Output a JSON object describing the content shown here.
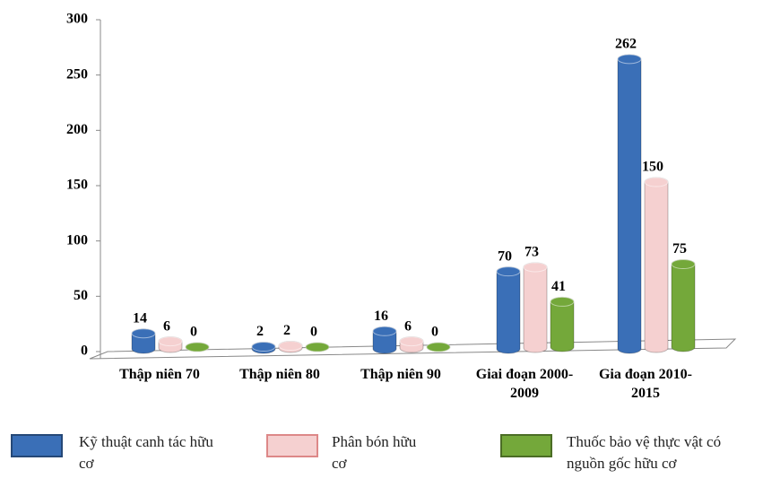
{
  "chart_data": {
    "type": "bar",
    "categories": [
      "Thập niên 70",
      "Thập niên 80",
      "Thập niên 90",
      "Giai đoạn 2000-2009",
      "Gia đoạn 2010-2015"
    ],
    "series": [
      {
        "name": "Kỹ thuật canh tác hữu cơ",
        "color": "#3a6fb7",
        "values": [
          14,
          2,
          16,
          70,
          262
        ]
      },
      {
        "name": "Phân bón hữu cơ",
        "color": "#f5d0d0",
        "values": [
          6,
          2,
          6,
          73,
          150
        ]
      },
      {
        "name": "Thuốc bảo vệ thực vật có nguồn gốc hữu cơ",
        "color": "#74a83a",
        "values": [
          0,
          0,
          0,
          41,
          75
        ]
      }
    ],
    "ylim": [
      0,
      300
    ],
    "yticks": [
      0,
      50,
      100,
      150,
      200,
      250,
      300
    ],
    "grid": false,
    "legend": "bottom"
  }
}
